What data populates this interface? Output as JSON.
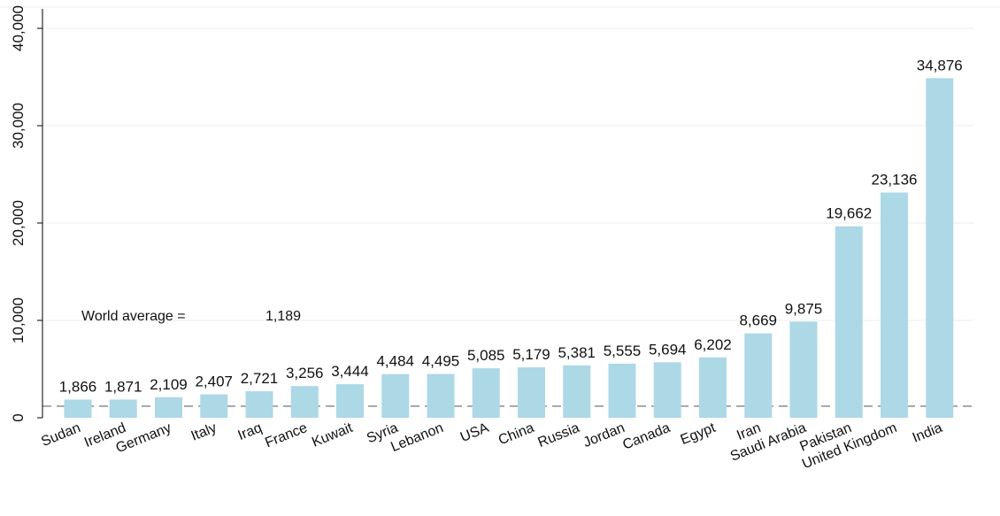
{
  "chart_data": {
    "type": "bar",
    "categories": [
      "Sudan",
      "Ireland",
      "Germany",
      "Italy",
      "Iraq",
      "France",
      "Kuwait",
      "Syria",
      "Lebanon",
      "USA",
      "China",
      "Russia",
      "Jordan",
      "Canada",
      "Egypt",
      "Iran",
      "Saudi Arabia",
      "Pakistan",
      "United Kingdom",
      "India"
    ],
    "values": [
      1866,
      1871,
      2109,
      2407,
      2721,
      3256,
      3444,
      4484,
      4495,
      5085,
      5179,
      5381,
      5555,
      5694,
      6202,
      8669,
      9875,
      19662,
      23136,
      34876
    ],
    "data_labels": [
      "1,866",
      "1,871",
      "2,109",
      "2,407",
      "2,721",
      "3,256",
      "3,444",
      "4,484",
      "4,495",
      "5,085",
      "5,179",
      "5,381",
      "5,555",
      "5,694",
      "6,202",
      "8,669",
      "9,875",
      "19,662",
      "23,136",
      "34,876"
    ],
    "yticks": [
      0,
      10000,
      20000,
      30000,
      40000
    ],
    "ytick_labels": [
      "0",
      "10,000",
      "20,000",
      "30,000",
      "40,000"
    ],
    "ylim": [
      0,
      42000
    ],
    "grid": true,
    "reference_line": {
      "value": 1189,
      "label": "World average =",
      "value_label": "1,189"
    },
    "colors": {
      "bar": "#add8e6",
      "grid": "#ececec",
      "axis": "#000000",
      "reference": "#666666"
    }
  }
}
